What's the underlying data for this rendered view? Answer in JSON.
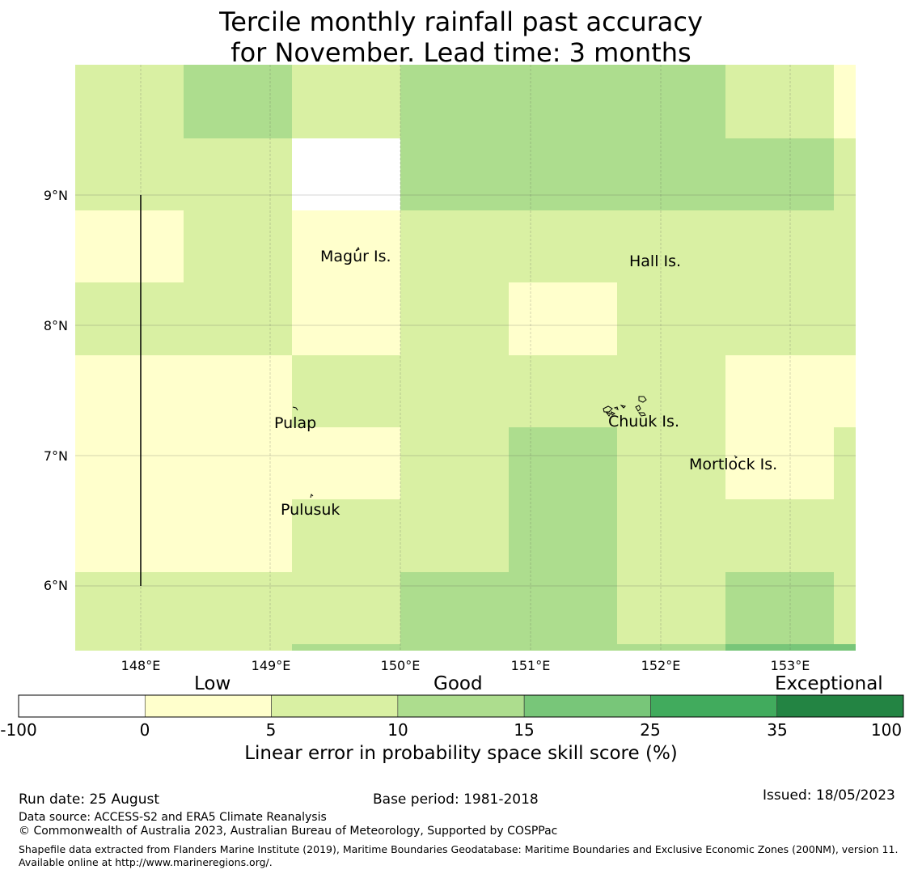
{
  "title": {
    "line1": "Tercile monthly rainfall past accuracy",
    "line2": "for November. Lead time: 3 months"
  },
  "map": {
    "lon_ticks": [
      "148°E",
      "149°E",
      "150°E",
      "151°E",
      "152°E",
      "153°E"
    ],
    "lat_ticks": [
      "9°N",
      "8°N",
      "7°N",
      "6°N"
    ],
    "places": [
      "Magur Is.",
      "Hall Is.",
      "Pulap",
      "Chuuk Is.",
      "Mortlock Is.",
      "Pulusuk"
    ]
  },
  "colorbar": {
    "categories": [
      "Low",
      "Good",
      "Exceptional"
    ],
    "ticks": [
      "-100",
      "0",
      "5",
      "10",
      "15",
      "25",
      "35",
      "100"
    ],
    "colors": [
      "#ffffff",
      "#ffffcc",
      "#d9f0a3",
      "#addd8e",
      "#78c679",
      "#41ab5d",
      "#238443"
    ],
    "label": "Linear error in probability space skill score (%)"
  },
  "footer": {
    "run_date": "Run date: 25 August",
    "base_period": "Base period: 1981-2018",
    "issued": "Issued: 18/05/2023",
    "data_source": "Data source: ACCESS-S2 and ERA5 Climate Reanalysis",
    "copyright": "© Commonwealth of Australia 2023, Australian Bureau of Meteorology, Supported by COSPPac",
    "shapefile": "Shapefile data extracted from Flanders Marine Institute (2019), Maritime Boundaries Geodatabase: Maritime Boundaries and Exclusive Economic Zones (200NM), version 11. Available online at http://www.marineregions.org/."
  }
}
